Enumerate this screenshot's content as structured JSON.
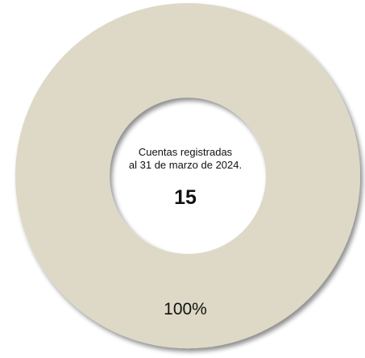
{
  "chart_data": {
    "type": "pie",
    "donut": true,
    "categories": [
      "Cuentas registradas"
    ],
    "values": [
      100
    ],
    "data_labels": [
      "100%"
    ],
    "center_text": {
      "line1": "Cuentas registradas",
      "line2": "al 31 de marzo de 2024.",
      "total": "15"
    },
    "colors": {
      "slice": "#ddd9c6",
      "shadow": "#a8a49a"
    }
  }
}
